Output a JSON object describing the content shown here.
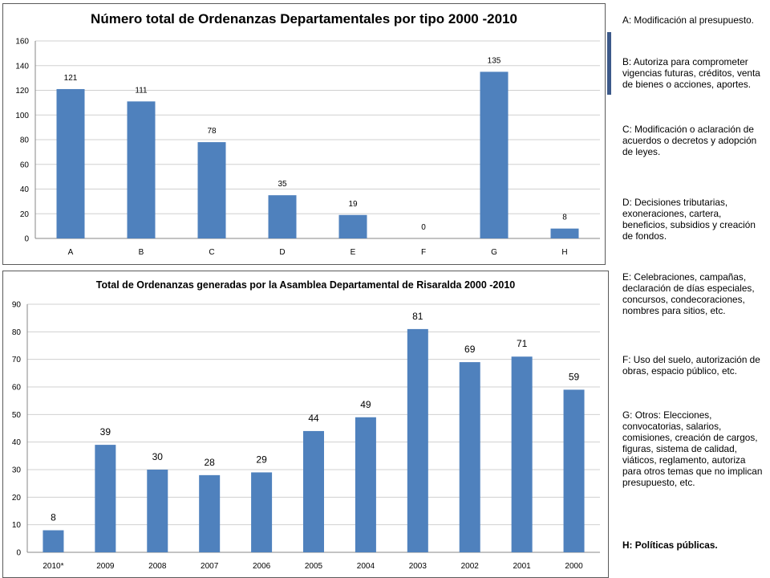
{
  "chart_data": [
    {
      "type": "bar",
      "title": "Número total de Ordenanzas Departamentales por tipo 2000 -2010",
      "categories": [
        "A",
        "B",
        "C",
        "D",
        "E",
        "F",
        "G",
        "H"
      ],
      "values": [
        121,
        111,
        78,
        35,
        19,
        0,
        135,
        8
      ],
      "ylim": [
        0,
        160
      ],
      "yticks": [
        0,
        20,
        40,
        60,
        80,
        100,
        120,
        140,
        160
      ],
      "grid": true,
      "color": "#4f81bd"
    },
    {
      "type": "bar",
      "title": "Total de Ordenanzas generadas por la Asamblea Departamental de Risaralda 2000 -2010",
      "categories": [
        "2010*",
        "2009",
        "2008",
        "2007",
        "2006",
        "2005",
        "2004",
        "2003",
        "2002",
        "2001",
        "2000"
      ],
      "values": [
        8,
        39,
        30,
        28,
        29,
        44,
        49,
        81,
        69,
        71,
        59
      ],
      "ylim": [
        0,
        90
      ],
      "yticks": [
        0,
        10,
        20,
        30,
        40,
        50,
        60,
        70,
        80,
        90
      ],
      "grid": true,
      "color": "#4f81bd"
    }
  ],
  "legend": [
    "A: Modificación al presupuesto.",
    "B: Autoriza para comprometer vigencias futuras, créditos, venta de bienes o acciones, aportes.",
    "C: Modificación o aclaración de acuerdos o decretos y adopción de leyes.",
    "D: Decisiones tributarias, exoneraciones, cartera, beneficios, subsidios y creación de fondos.",
    "E: Celebraciones, campañas, declaración de días especiales, concursos, condecoraciones, nombres para sitios, etc.",
    "F: Uso del suelo, autorización de obras, espacio público, etc.",
    "G: Otros: Elecciones, convocatorias, salarios, comisiones, creación de cargos, figuras, sistema de calidad, viáticos, reglamento, autoriza para otros temas que no implican presupuesto, etc.",
    "H: Políticas públicas."
  ]
}
